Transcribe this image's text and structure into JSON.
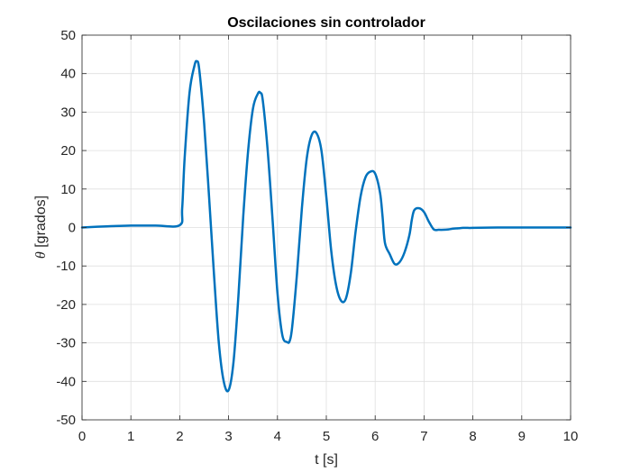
{
  "chart_data": {
    "type": "line",
    "title": "Oscilaciones sin controlador",
    "xlabel": "t [s]",
    "ylabel_symbol": "θ",
    "ylabel_rest": " [grados]",
    "xlim": [
      0,
      10
    ],
    "ylim": [
      -50,
      50
    ],
    "xticks": [
      0,
      1,
      2,
      3,
      4,
      5,
      6,
      7,
      8,
      9,
      10
    ],
    "xtick_labels": [
      "0",
      "1",
      "2",
      "3",
      "4",
      "5",
      "6",
      "7",
      "8",
      "9",
      "10"
    ],
    "yticks": [
      -50,
      -40,
      -30,
      -20,
      -10,
      0,
      10,
      20,
      30,
      40,
      50
    ],
    "ytick_labels": [
      "-50",
      "-40",
      "-30",
      "-20",
      "-10",
      "0",
      "10",
      "20",
      "30",
      "40",
      "50"
    ],
    "grid": true,
    "line_color": "#0072BD",
    "series": [
      {
        "x": [
          0,
          0.5,
          1.0,
          1.5,
          2.0,
          2.05,
          2.1,
          2.2,
          2.3,
          2.35,
          2.4,
          2.5,
          2.6,
          2.7,
          2.8,
          2.9,
          3.0,
          3.1,
          3.2,
          3.3,
          3.4,
          3.5,
          3.6,
          3.65,
          3.7,
          3.8,
          3.9,
          4.0,
          4.1,
          4.2,
          4.25,
          4.3,
          4.4,
          4.5,
          4.6,
          4.7,
          4.8,
          4.9,
          5.0,
          5.1,
          5.2,
          5.3,
          5.4,
          5.5,
          5.6,
          5.7,
          5.8,
          5.9,
          6.0,
          6.1,
          6.15,
          6.2,
          6.3,
          6.4,
          6.5,
          6.6,
          6.7,
          6.75,
          6.8,
          6.9,
          7.0,
          7.1,
          7.2,
          7.3,
          7.4,
          7.5,
          7.6,
          7.7,
          7.8,
          7.9,
          8.0,
          8.5,
          9.0,
          9.5,
          10.0
        ],
        "y": [
          0,
          0.3,
          0.5,
          0.5,
          0.6,
          5,
          18,
          35,
          42,
          43.2,
          41,
          27,
          8,
          -12,
          -30,
          -40,
          -42.3,
          -35,
          -18,
          3,
          20,
          31,
          34.8,
          35,
          33,
          20,
          2,
          -17,
          -28,
          -29.8,
          -29.5,
          -26,
          -12,
          5,
          18,
          24,
          24.5,
          20,
          8,
          -6,
          -15,
          -19,
          -18.5,
          -12,
          -1,
          8,
          13,
          14.5,
          14,
          9,
          3,
          -4,
          -7,
          -9.5,
          -9,
          -6.5,
          -2,
          2,
          4.5,
          5,
          4,
          1.5,
          -0.5,
          -0.6,
          -0.6,
          -0.5,
          -0.3,
          -0.2,
          -0.1,
          -0.1,
          -0.1,
          0,
          0,
          0,
          0
        ]
      }
    ]
  }
}
